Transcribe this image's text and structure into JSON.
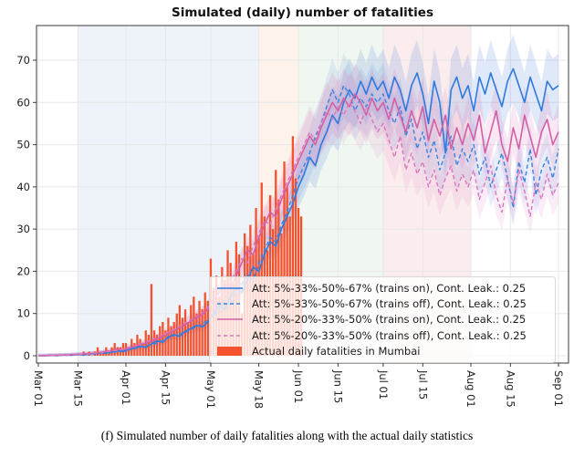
{
  "figure": {
    "title": "Simulated (daily) number of fatalities",
    "caption": "(f) Simulated number of daily fatalities along with the actual daily statistics"
  },
  "chart_data": {
    "type": "line",
    "title": "Simulated (daily) number of fatalities",
    "xlabel": "",
    "ylabel": "",
    "ylim": [
      -2,
      78
    ],
    "grid": true,
    "legend_position": "lower right inside plot",
    "x_ticks": [
      {
        "day": 0,
        "label": "Mar 01"
      },
      {
        "day": 14,
        "label": "Mar 15"
      },
      {
        "day": 31,
        "label": "Apr 01"
      },
      {
        "day": 45,
        "label": "Apr 15"
      },
      {
        "day": 61,
        "label": "May 01"
      },
      {
        "day": 78,
        "label": "May 18"
      },
      {
        "day": 92,
        "label": "Jun 01"
      },
      {
        "day": 106,
        "label": "Jun 15"
      },
      {
        "day": 122,
        "label": "Jul 01"
      },
      {
        "day": 136,
        "label": "Jul 15"
      },
      {
        "day": 153,
        "label": "Aug 01"
      },
      {
        "day": 167,
        "label": "Aug 15"
      },
      {
        "day": 184,
        "label": "Sep 01"
      }
    ],
    "y_ticks": [
      0,
      10,
      20,
      30,
      40,
      50,
      60,
      70
    ],
    "background_regions": [
      {
        "from_day": 14,
        "to_day": 78,
        "color": "#edf3f9"
      },
      {
        "from_day": 78,
        "to_day": 92,
        "color": "#fdf3eb"
      },
      {
        "from_day": 92,
        "to_day": 122,
        "color": "#f0f7f0"
      },
      {
        "from_day": 122,
        "to_day": 153,
        "color": "#fbeded"
      }
    ],
    "series": [
      {
        "name": "Att: 5%-33%-50%-67% (trains on), Cont. Leak.: 0.25",
        "style": "solid",
        "color": "#2e79de",
        "band_color": "rgba(70,125,220,0.17)",
        "x_start": 0,
        "x_step": 2,
        "values": [
          0,
          0,
          0.1,
          0,
          0.1,
          0.2,
          0.1,
          0.3,
          0.2,
          0.4,
          0.5,
          0.7,
          0.6,
          0.9,
          1.2,
          1.0,
          1.5,
          1.8,
          2.2,
          2.0,
          2.8,
          3.5,
          3.2,
          4.5,
          5.0,
          4.6,
          5.8,
          6.5,
          7.2,
          6.8,
          8.0,
          10,
          12,
          11,
          14,
          16,
          15,
          18,
          21,
          20,
          24,
          27,
          26,
          30,
          33,
          36,
          40,
          43,
          47,
          45,
          50,
          53,
          57,
          55,
          60,
          63,
          61,
          65,
          62,
          66,
          63,
          65,
          61,
          66,
          63,
          58,
          64,
          67,
          62,
          55,
          65,
          60,
          48,
          63,
          66,
          61,
          64,
          58,
          66,
          62,
          67,
          63,
          59,
          65,
          68,
          64,
          60,
          66,
          62,
          58,
          65,
          63,
          64
        ]
      },
      {
        "name": "Att: 5%-33%-50%-67% (trains off), Cont. Leak.: 0.25",
        "style": "dashed",
        "color": "#3b82e0",
        "band_color": "rgba(95,140,225,0.14)",
        "x_start": 0,
        "x_step": 2,
        "values": [
          0,
          0,
          0,
          0.1,
          0.1,
          0.1,
          0.2,
          0.2,
          0.3,
          0.3,
          0.4,
          0.6,
          0.8,
          0.7,
          1.0,
          1.3,
          1.4,
          1.7,
          2.0,
          2.4,
          2.6,
          3.0,
          3.6,
          4.2,
          4.8,
          5.2,
          5.5,
          6.2,
          6.8,
          7.5,
          8.5,
          9.5,
          11,
          13,
          12,
          15,
          17,
          19,
          18,
          22,
          25,
          28,
          27,
          31,
          34,
          38,
          42,
          45,
          48,
          52,
          55,
          59,
          63,
          60,
          64,
          62,
          58,
          61,
          59,
          62,
          60,
          62,
          58,
          55,
          59,
          52,
          56,
          49,
          53,
          47,
          51,
          44,
          48,
          52,
          45,
          49,
          46,
          50,
          43,
          47,
          40,
          44,
          48,
          42,
          35,
          46,
          41,
          49,
          38,
          44,
          47,
          42,
          49
        ]
      },
      {
        "name": "Att: 5%-20%-33%-50% (trains on), Cont. Leak.: 0.25",
        "style": "solid",
        "color": "#d45fa5",
        "band_color": "rgba(214,95,170,0.14)",
        "x_start": 0,
        "x_step": 2,
        "values": [
          0,
          0,
          0.1,
          0.1,
          0.2,
          0.1,
          0.3,
          0.3,
          0.4,
          0.5,
          0.6,
          0.8,
          1.0,
          1.2,
          1.5,
          1.4,
          1.8,
          2.2,
          2.6,
          3.0,
          3.4,
          4.0,
          4.6,
          5.2,
          6.0,
          6.6,
          7.4,
          8.2,
          9.0,
          9.8,
          11,
          13,
          15,
          17,
          16,
          19,
          22,
          25,
          24,
          28,
          31,
          34,
          33,
          37,
          40,
          43,
          46,
          49,
          52,
          50,
          54,
          57,
          60,
          58,
          61,
          59,
          62,
          60,
          57,
          61,
          58,
          60,
          56,
          61,
          57,
          53,
          58,
          54,
          59,
          51,
          56,
          52,
          57,
          49,
          54,
          50,
          55,
          51,
          57,
          48,
          53,
          58,
          50,
          46,
          54,
          49,
          57,
          52,
          47,
          53,
          56,
          50,
          53
        ]
      },
      {
        "name": "Att: 5%-20%-33%-50% (trains off), Cont. Leak.: 0.25",
        "style": "dashed",
        "color": "#d877bd",
        "band_color": "rgba(220,130,195,0.14)",
        "x_start": 0,
        "x_step": 2,
        "values": [
          0,
          0,
          0,
          0.1,
          0.1,
          0.2,
          0.2,
          0.3,
          0.4,
          0.4,
          0.6,
          0.7,
          0.9,
          1.1,
          1.3,
          1.6,
          2.0,
          2.4,
          2.8,
          3.2,
          3.8,
          4.4,
          5.0,
          5.6,
          6.2,
          7.0,
          7.8,
          8.6,
          9.4,
          10.2,
          11.5,
          13.5,
          15.5,
          14.5,
          17.5,
          20,
          23,
          22,
          26,
          29,
          32,
          31,
          35,
          38,
          41,
          44,
          47,
          50,
          53,
          51,
          55,
          58,
          56,
          59,
          57,
          60,
          58,
          55,
          59,
          56,
          53,
          55,
          51,
          47,
          52,
          44,
          48,
          43,
          46,
          40,
          44,
          38,
          42,
          45,
          39,
          43,
          40,
          44,
          37,
          41,
          45,
          38,
          34,
          42,
          36,
          44,
          39,
          33,
          41,
          37,
          43,
          38,
          41
        ]
      }
    ],
    "bars": {
      "name": "Actual daily fatalities in Mumbai",
      "color": "#f4512f",
      "start_day": 16,
      "values": [
        1,
        0,
        1,
        0,
        1,
        2,
        1,
        1,
        2,
        1,
        2,
        3,
        2,
        2,
        3,
        3,
        2,
        4,
        3,
        5,
        4,
        3,
        6,
        5,
        17,
        6,
        5,
        7,
        8,
        6,
        9,
        7,
        8,
        10,
        12,
        9,
        11,
        8,
        12,
        14,
        10,
        13,
        11,
        15,
        13,
        23,
        16,
        19,
        14,
        21,
        18,
        25,
        22,
        17,
        27,
        24,
        10,
        29,
        26,
        31,
        24,
        35,
        28,
        41,
        33,
        25,
        38,
        30,
        44,
        37,
        29,
        46,
        40,
        33,
        52,
        42,
        35,
        33
      ]
    },
    "colors": {
      "axis": "#3a3a3a",
      "grid": "#e7e7e7",
      "tick_label": "#222222",
      "plot_background": "#ffffff"
    }
  }
}
